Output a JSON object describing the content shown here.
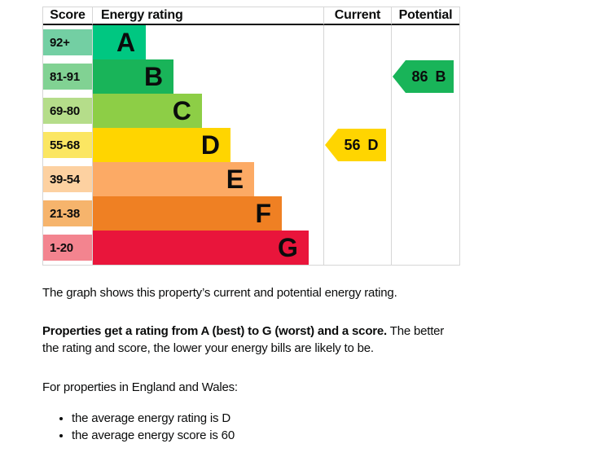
{
  "chart_data": {
    "type": "bar",
    "orientation": "horizontal",
    "title": "Energy rating",
    "columns": [
      "Score",
      "Energy rating",
      "Current",
      "Potential"
    ],
    "categories": [
      "A",
      "B",
      "C",
      "D",
      "E",
      "F",
      "G"
    ],
    "score_ranges": [
      "92+",
      "81-91",
      "69-80",
      "55-68",
      "39-54",
      "21-38",
      "1-20"
    ],
    "bar_length_pct": [
      23,
      35,
      47.3,
      59.7,
      70,
      82,
      93.6
    ],
    "band_colors": {
      "A": "#00c781",
      "B": "#19b459",
      "C": "#8dce46",
      "D": "#ffd500",
      "E": "#fcaa65",
      "F": "#ef8023",
      "G": "#e9153b"
    },
    "markers": [
      {
        "name": "Current",
        "score": 56,
        "rating": "D"
      },
      {
        "name": "Potential",
        "score": 86,
        "rating": "B"
      }
    ],
    "legend_position": "none",
    "grid": false
  },
  "chart": {
    "headers": {
      "score": "Score",
      "rating": "Energy rating",
      "current": "Current",
      "potential": "Potential"
    },
    "bands": [
      {
        "score_range": "92+",
        "letter": "A",
        "color": "#00c781",
        "tint": "#73cfa3",
        "width_pct": 23
      },
      {
        "score_range": "81-91",
        "letter": "B",
        "color": "#19b459",
        "tint": "#81d293",
        "width_pct": 35
      },
      {
        "score_range": "69-80",
        "letter": "C",
        "color": "#8dce46",
        "tint": "#b5dd8a",
        "width_pct": 47.3
      },
      {
        "score_range": "55-68",
        "letter": "D",
        "color": "#ffd500",
        "tint": "#fbe662",
        "width_pct": 59.7
      },
      {
        "score_range": "39-54",
        "letter": "E",
        "color": "#fcaa65",
        "tint": "#fdd1a1",
        "width_pct": 70
      },
      {
        "score_range": "21-38",
        "letter": "F",
        "color": "#ef8023",
        "tint": "#f6b46c",
        "width_pct": 82
      },
      {
        "score_range": "1-20",
        "letter": "G",
        "color": "#e9153b",
        "tint": "#f3848f",
        "width_pct": 93.6
      }
    ],
    "current": {
      "score": "56",
      "letter": "D",
      "color": "#ffd500",
      "band_index": 3
    },
    "potential": {
      "score": "86",
      "letter": "B",
      "color": "#19b459",
      "band_index": 1
    }
  },
  "description": {
    "intro": "The graph shows this property’s current and potential energy rating.",
    "rating_bold": "Properties get a rating from A (best) to G (worst) and a score.",
    "rating_rest_line1": "The better",
    "rating_rest_line2": "the rating and score, the lower your energy bills are likely to be.",
    "region_intro": "For properties in England and Wales:",
    "bullets": [
      "the average energy rating is D",
      "the average energy score is 60"
    ]
  }
}
